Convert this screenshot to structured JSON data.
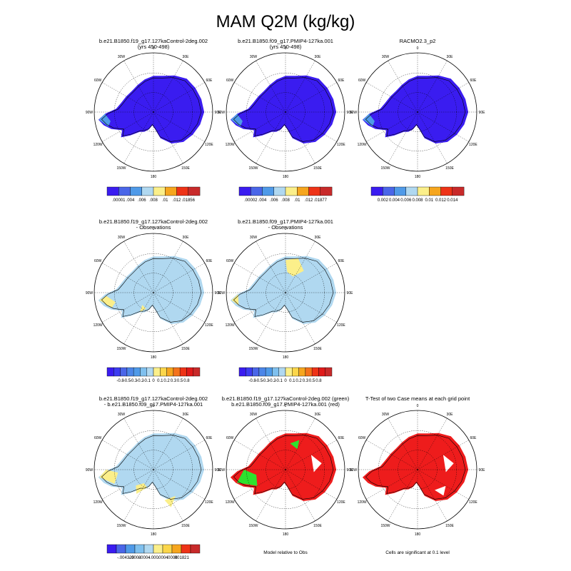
{
  "chart_data": {
    "type": "heatmap",
    "title": "MAM Q2M (kg/kg)",
    "panels": [
      {
        "id": "p1",
        "title": [
          "b.e21.B1850.f19_g17.127kaControl-2deg.002",
          "(yrs 450-498)"
        ],
        "map": "model",
        "lonlabels": [
          "0",
          "30E",
          "60E",
          "90E",
          "120E",
          "150E",
          "180",
          "150W",
          "120W",
          "90W",
          "60W",
          "30W"
        ],
        "colorbar": {
          "colors": [
            "#3a1cf0",
            "#4a66e8",
            "#4f9ae8",
            "#b0d8f0",
            "#fbef8a",
            "#f6a61e",
            "#ee3317",
            "#c82a2a"
          ],
          "labels": [
            ".00001",
            ".004",
            ".006",
            ".008",
            ".01",
            ".012",
            ".01856"
          ]
        }
      },
      {
        "id": "p2",
        "title": [
          "b.e21.B1850.f09_g17.PMIP4-127ka.001",
          "(yrs 450-498)"
        ],
        "map": "model",
        "lonlabels": [
          "0",
          "30E",
          "60E",
          "90E",
          "120E",
          "150E",
          "180",
          "150W",
          "120W",
          "90W",
          "60W",
          "30W"
        ],
        "colorbar": {
          "colors": [
            "#3a1cf0",
            "#4a66e8",
            "#4f9ae8",
            "#b0d8f0",
            "#fbef8a",
            "#f6a61e",
            "#ee3317",
            "#c82a2a"
          ],
          "labels": [
            ".00002",
            ".004",
            ".006",
            ".008",
            ".01",
            ".012",
            ".01877"
          ]
        }
      },
      {
        "id": "p3",
        "title": [
          "RACMO2.3_p2"
        ],
        "map": "model",
        "lonlabels": [
          "0",
          "30E",
          "60E",
          "90E",
          "120E",
          "150E",
          "180",
          "150W",
          "120W",
          "90W",
          "60W",
          "30W"
        ],
        "colorbar": {
          "colors": [
            "#3a1cf0",
            "#4a66e8",
            "#4f9ae8",
            "#b0d8f0",
            "#fbef8a",
            "#f6a61e",
            "#ee3317",
            "#c82a2a"
          ],
          "labels": [
            "0.002",
            "0.004",
            "0.006",
            "0.008",
            "0.01",
            "0.012",
            "0.014"
          ]
        }
      },
      {
        "id": "p4",
        "title": [
          "b.e21.B1850.f19_g17.127kaControl-2deg.002",
          "- Observations"
        ],
        "map": "diff",
        "lonlabels": [
          "0",
          "30E",
          "60E",
          "90E",
          "120E",
          "150E",
          "180",
          "150W",
          "120W",
          "90W",
          "60W",
          "30W"
        ],
        "colorbar": {
          "colors": [
            "#3a1cf0",
            "#3d3cf0",
            "#4a66e8",
            "#4b86e8",
            "#4f9ae8",
            "#7fc0ee",
            "#b0d8f0",
            "#fbef8a",
            "#fbd64a",
            "#f6a61e",
            "#f4731b",
            "#ee3317",
            "#e01a1a",
            "#c82a2a"
          ],
          "labels": [
            "-0.8",
            "-0.5",
            "-0.3",
            "-0.2",
            "-0.1",
            "0",
            "0.1",
            "0.2",
            "0.3",
            "0.5",
            "0.8"
          ]
        }
      },
      {
        "id": "p5",
        "title": [
          "b.e21.B1850.f09_g17.PMIP4-127ka.001",
          "- Observations"
        ],
        "map": "diff2",
        "lonlabels": [
          "0",
          "30E",
          "60E",
          "90E",
          "120E",
          "150E",
          "180",
          "150W",
          "120W",
          "90W",
          "60W",
          "30W"
        ],
        "colorbar": {
          "colors": [
            "#3a1cf0",
            "#3d3cf0",
            "#4a66e8",
            "#4b86e8",
            "#4f9ae8",
            "#7fc0ee",
            "#b0d8f0",
            "#fbef8a",
            "#fbd64a",
            "#f6a61e",
            "#f4731b",
            "#ee3317",
            "#e01a1a",
            "#c82a2a"
          ],
          "labels": [
            "-0.8",
            "-0.5",
            "-0.3",
            "-0.2",
            "-0.1",
            "0",
            "0.1",
            "0.2",
            "0.3",
            "0.5",
            "0.8"
          ]
        }
      },
      {
        "id": "p6",
        "title": [
          "b.e21.B1850.f19_g17.127kaControl-2deg.002",
          "- b.e21.B1850.f09_g17.PMIP4-127ka.001"
        ],
        "map": "diff3",
        "lonlabels": [
          "0",
          "30E",
          "60E",
          "90E",
          "120E",
          "150E",
          "180",
          "150W",
          "120W",
          "90W",
          "60W",
          "30W"
        ],
        "colorbar": {
          "colors": [
            "#3a1cf0",
            "#4a66e8",
            "#4f9ae8",
            "#7fc0ee",
            "#b0d8f0",
            "#fbef8a",
            "#fbd64a",
            "#f6a61e",
            "#ee3317",
            "#c82a2a"
          ],
          "labels": [
            "-.004329",
            "-.0008",
            "-.0004",
            "-.000",
            ".0004",
            ".0008",
            ".001821"
          ]
        }
      },
      {
        "id": "p7",
        "title": [
          "b.e21.B1850.f19_g17.127kaControl-2deg.002 (green)",
          "b.e21.B1850.f09_g17.PMIP4-127ka.001 (red)"
        ],
        "map": "rg",
        "lonlabels": [
          "0",
          "30E",
          "60E",
          "90E",
          "120E",
          "150E",
          "180",
          "150W",
          "120W",
          "90W",
          "60W",
          "30W"
        ],
        "footer": "Model relative to Obs"
      },
      {
        "id": "p8",
        "title": [
          "T-Test of two Case means at each grid point"
        ],
        "map": "ttest",
        "lonlabels": [
          "0",
          "30E",
          "60E",
          "90E",
          "120E",
          "150E",
          "180",
          "150W",
          "120W",
          "90W",
          "60W",
          "30W"
        ],
        "footer": "Cells are significant at 0.1 level"
      }
    ]
  }
}
